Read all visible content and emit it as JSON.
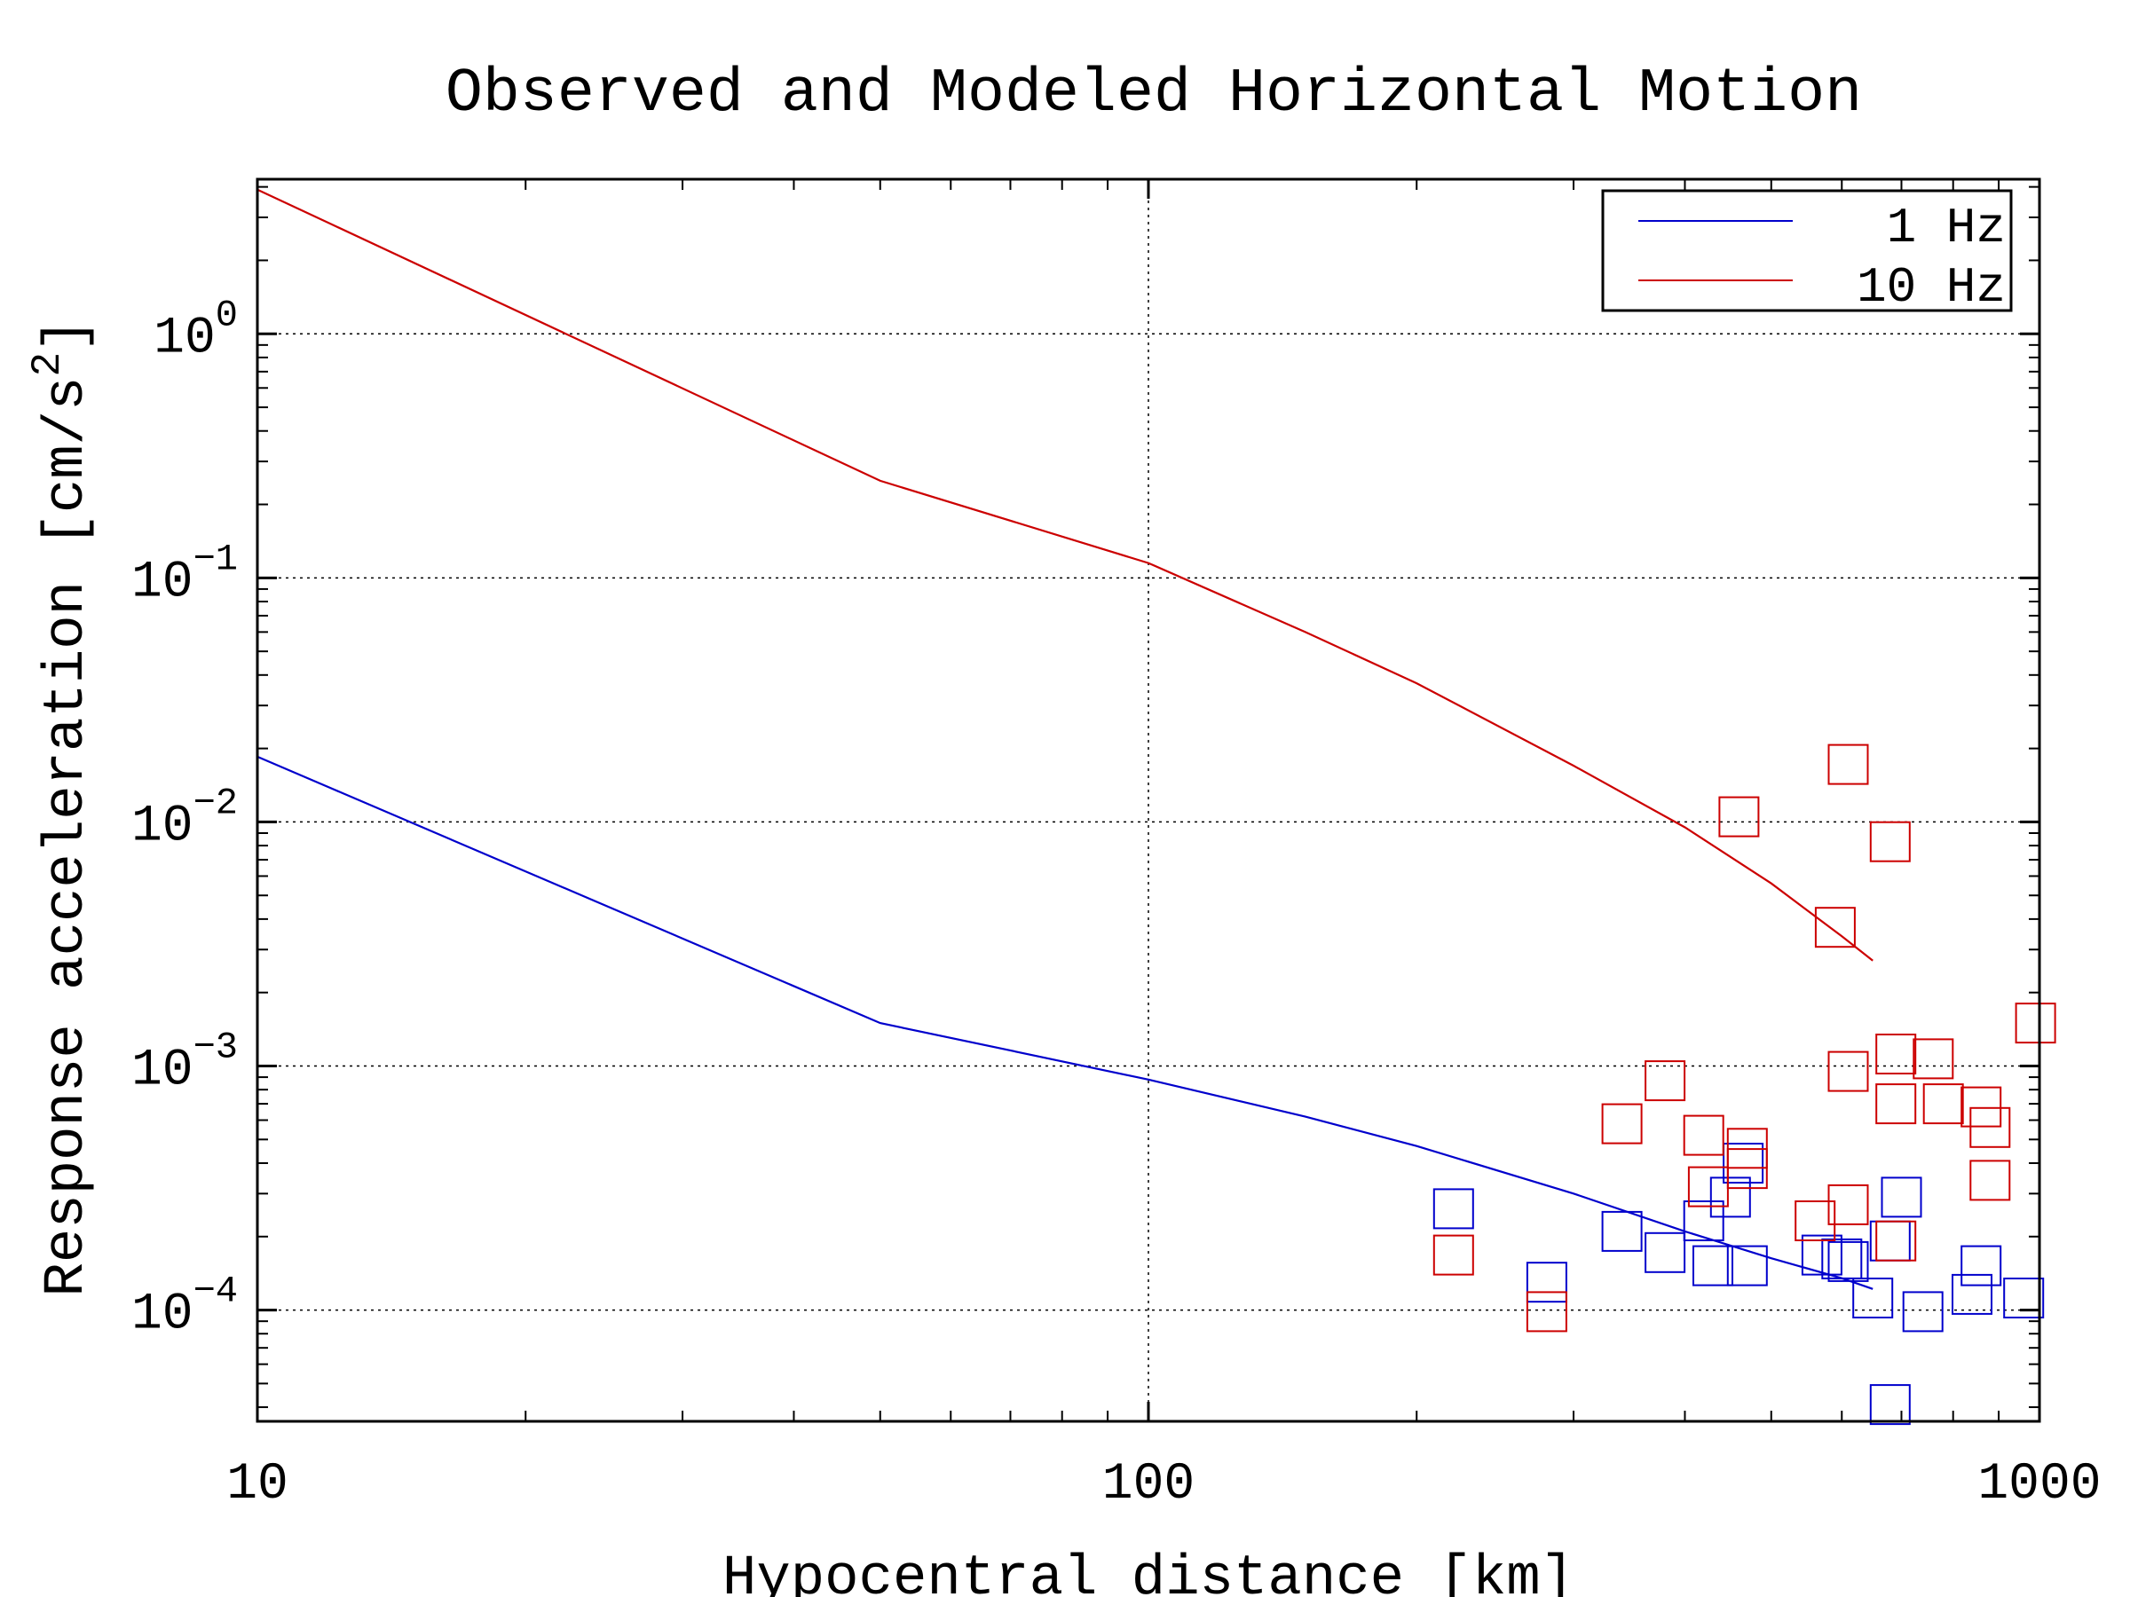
{
  "chart_data": {
    "type": "scatter",
    "title": "Observed and Modeled Horizontal Motion",
    "xlabel": "Hypocentral distance [km]",
    "ylabel_prefix": "Response acceleration [cm/s",
    "ylabel_sup": "2",
    "ylabel_suffix": "]",
    "x_scale": "log",
    "y_scale": "log",
    "xlim": [
      10,
      1000
    ],
    "ylim": [
      3.5e-05,
      4.3
    ],
    "grid": true,
    "legend_position": "top-right",
    "x_ticks": [
      {
        "value": 10,
        "label": "10"
      },
      {
        "value": 100,
        "label": "100"
      },
      {
        "value": 1000,
        "label": "1000"
      }
    ],
    "y_ticks": [
      {
        "value": 1,
        "base": "10",
        "exp": "0"
      },
      {
        "value": 0.1,
        "base": "10",
        "exp": "−1"
      },
      {
        "value": 0.01,
        "base": "10",
        "exp": "−2"
      },
      {
        "value": 0.001,
        "base": "10",
        "exp": "−3"
      },
      {
        "value": 0.0001,
        "base": "10",
        "exp": "−4"
      }
    ],
    "series": [
      {
        "name": "1 Hz",
        "color": "#0000cc",
        "model": [
          [
            10,
            0.0185
          ],
          [
            50,
            0.0015
          ],
          [
            100,
            0.00088
          ],
          [
            150,
            0.00062
          ],
          [
            200,
            0.00047
          ],
          [
            300,
            0.0003
          ],
          [
            400,
            0.00021
          ],
          [
            500,
            0.000163
          ],
          [
            600,
            0.000135
          ],
          [
            650,
            0.000122
          ]
        ],
        "observed": [
          [
            220,
            0.00026
          ],
          [
            280,
            0.00013
          ],
          [
            340,
            0.00021
          ],
          [
            380,
            0.000172
          ],
          [
            420,
            0.000232
          ],
          [
            430,
            0.000152
          ],
          [
            450,
            0.00029
          ],
          [
            465,
            0.0004
          ],
          [
            470,
            0.000152
          ],
          [
            570,
            0.000168
          ],
          [
            600,
            0.000162
          ],
          [
            610,
            0.000158
          ],
          [
            650,
            0.000112
          ],
          [
            680,
            0.000192
          ],
          [
            700,
            0.00029
          ],
          [
            740,
            9.85e-05
          ],
          [
            840,
            0.000116
          ],
          [
            860,
            0.000152
          ],
          [
            960,
            0.000112
          ],
          [
            680,
            4.1e-05
          ]
        ]
      },
      {
        "name": "10 Hz",
        "color": "#cc0000",
        "model": [
          [
            10,
            3.9
          ],
          [
            50,
            0.25
          ],
          [
            100,
            0.115
          ],
          [
            150,
            0.06
          ],
          [
            200,
            0.037
          ],
          [
            300,
            0.017
          ],
          [
            400,
            0.0095
          ],
          [
            500,
            0.0056
          ],
          [
            600,
            0.0034
          ],
          [
            650,
            0.0027
          ]
        ],
        "observed": [
          [
            220,
            0.000168
          ],
          [
            280,
            9.85e-05
          ],
          [
            340,
            0.00058
          ],
          [
            380,
            0.00087
          ],
          [
            420,
            0.00052
          ],
          [
            425,
            0.00032
          ],
          [
            460,
            0.0105
          ],
          [
            470,
            0.00046
          ],
          [
            470,
            0.00038
          ],
          [
            560,
            0.000232
          ],
          [
            590,
            0.0037
          ],
          [
            610,
            0.0172
          ],
          [
            610,
            0.00095
          ],
          [
            610,
            0.00027
          ],
          [
            680,
            0.0083
          ],
          [
            690,
            0.0007
          ],
          [
            690,
            0.00112
          ],
          [
            690,
            0.000192
          ],
          [
            760,
            0.00107
          ],
          [
            780,
            0.0007
          ],
          [
            860,
            0.00068
          ],
          [
            880,
            0.00056
          ],
          [
            880,
            0.00034
          ],
          [
            990,
            0.0015
          ]
        ]
      }
    ]
  }
}
